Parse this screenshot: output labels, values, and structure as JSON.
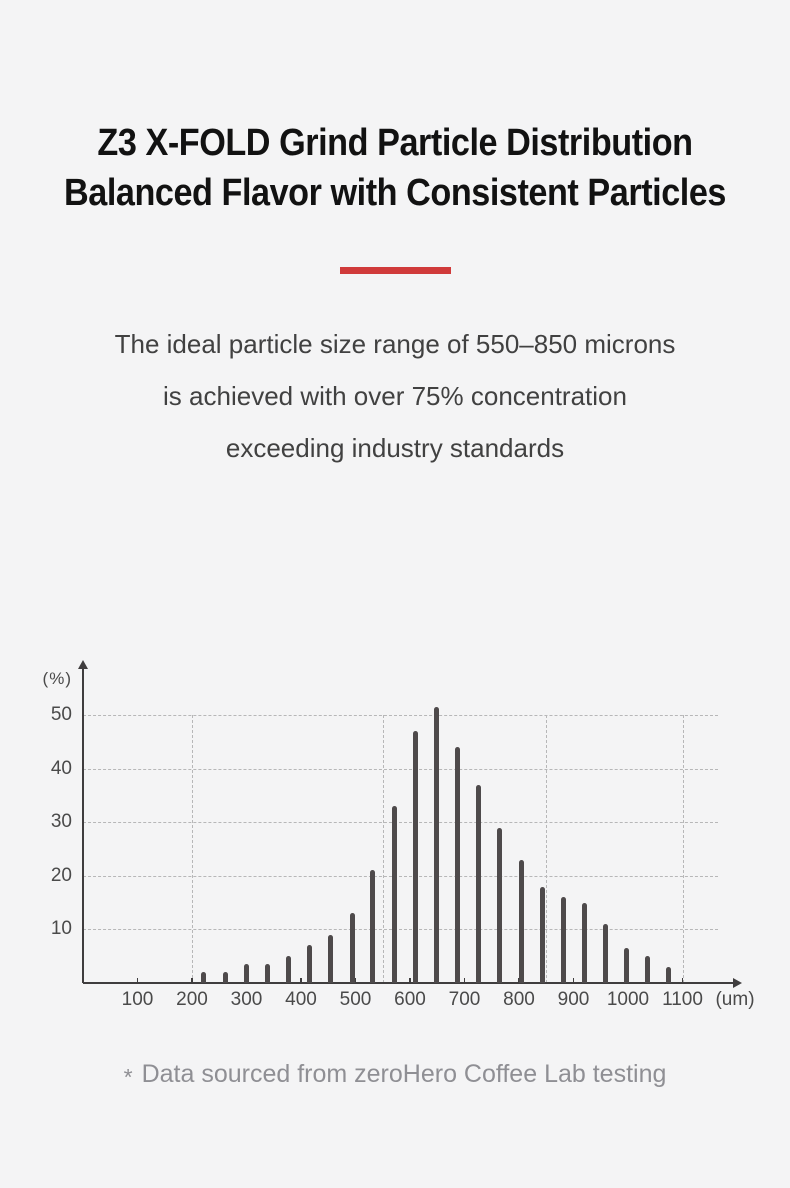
{
  "page": {
    "title_line1": "Z3 X-FOLD Grind Particle Distribution",
    "title_line2": "Balanced Flavor with Consistent Particles",
    "divider_color": "#d03a3a",
    "subtitle_line1": "The ideal particle size range of 550–850 microns",
    "subtitle_line2": "is achieved with over 75% concentration",
    "subtitle_line3": "exceeding industry standards",
    "footnote_marker": "*",
    "footnote_text": "Data sourced from zeroHero Coffee Lab testing",
    "background": "#f4f4f5"
  },
  "chart_data": {
    "type": "bar",
    "title": "Z3 X-FOLD grind particle size distribution",
    "xlabel": "(um)",
    "ylabel": "(%)",
    "x_ticks": [
      100,
      200,
      300,
      400,
      500,
      600,
      700,
      800,
      900,
      1000,
      1100
    ],
    "y_ticks": [
      10,
      20,
      30,
      40,
      50
    ],
    "xlim": [
      0,
      1200
    ],
    "ylim": [
      0,
      55
    ],
    "grid": "dashed",
    "legend": "none",
    "highlight_vertical_gridlines_um": [
      200,
      550,
      850,
      1100
    ],
    "bar_color": "#4e4a4b",
    "x_um": [
      222,
      261,
      300,
      338,
      377,
      416,
      455,
      494,
      532,
      571,
      610,
      649,
      687,
      726,
      765,
      804,
      843,
      881,
      920,
      959,
      998,
      1036,
      1075
    ],
    "values": [
      2,
      2,
      3.5,
      3.5,
      5,
      7,
      9,
      13,
      21,
      33,
      47,
      51.5,
      44,
      37,
      29,
      23,
      18,
      16,
      15,
      11,
      6.5,
      5,
      3
    ]
  }
}
